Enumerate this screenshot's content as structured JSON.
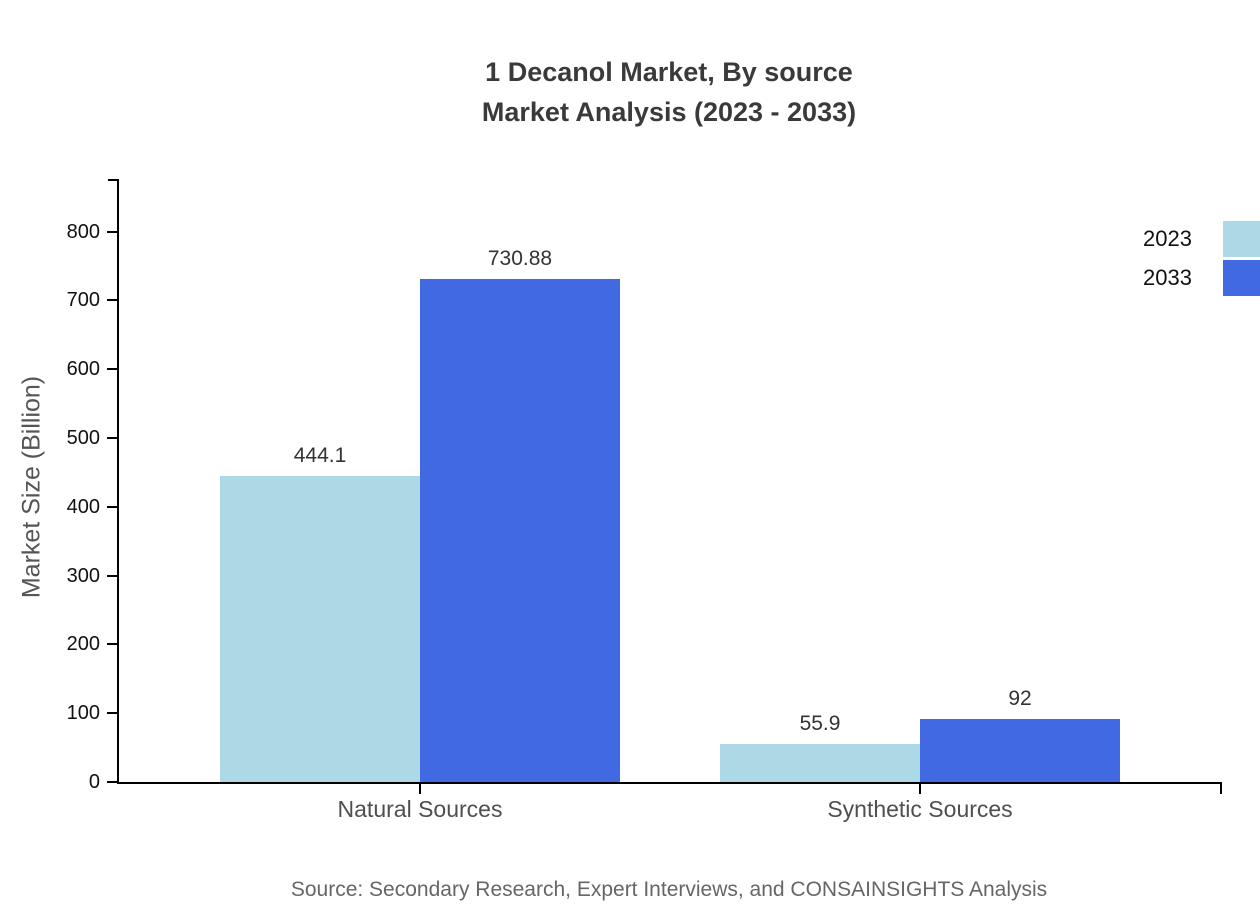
{
  "chart_data": {
    "type": "bar",
    "title": "1 Decanol Market, By source",
    "subtitle": "Market Analysis (2023 - 2033)",
    "ylabel": "Market Size (Billion)",
    "xlabel": "",
    "categories": [
      "Natural Sources",
      "Synthetic Sources"
    ],
    "series": [
      {
        "name": "2023",
        "color": "#ADD8E6",
        "values": [
          444.1,
          55.9
        ],
        "value_labels": [
          "444.1",
          "55.9"
        ]
      },
      {
        "name": "2033",
        "color": "#4169E1",
        "values": [
          730.88,
          92
        ],
        "value_labels": [
          "730.88",
          "92"
        ]
      }
    ],
    "y_ticks": [
      0,
      100,
      200,
      300,
      400,
      500,
      600,
      700,
      800
    ],
    "ylim": [
      0,
      875
    ],
    "grid": false,
    "legend_position": "top-right",
    "source_note": "Source: Secondary Research, Expert Interviews, and CONSAINSIGHTS Analysis"
  }
}
